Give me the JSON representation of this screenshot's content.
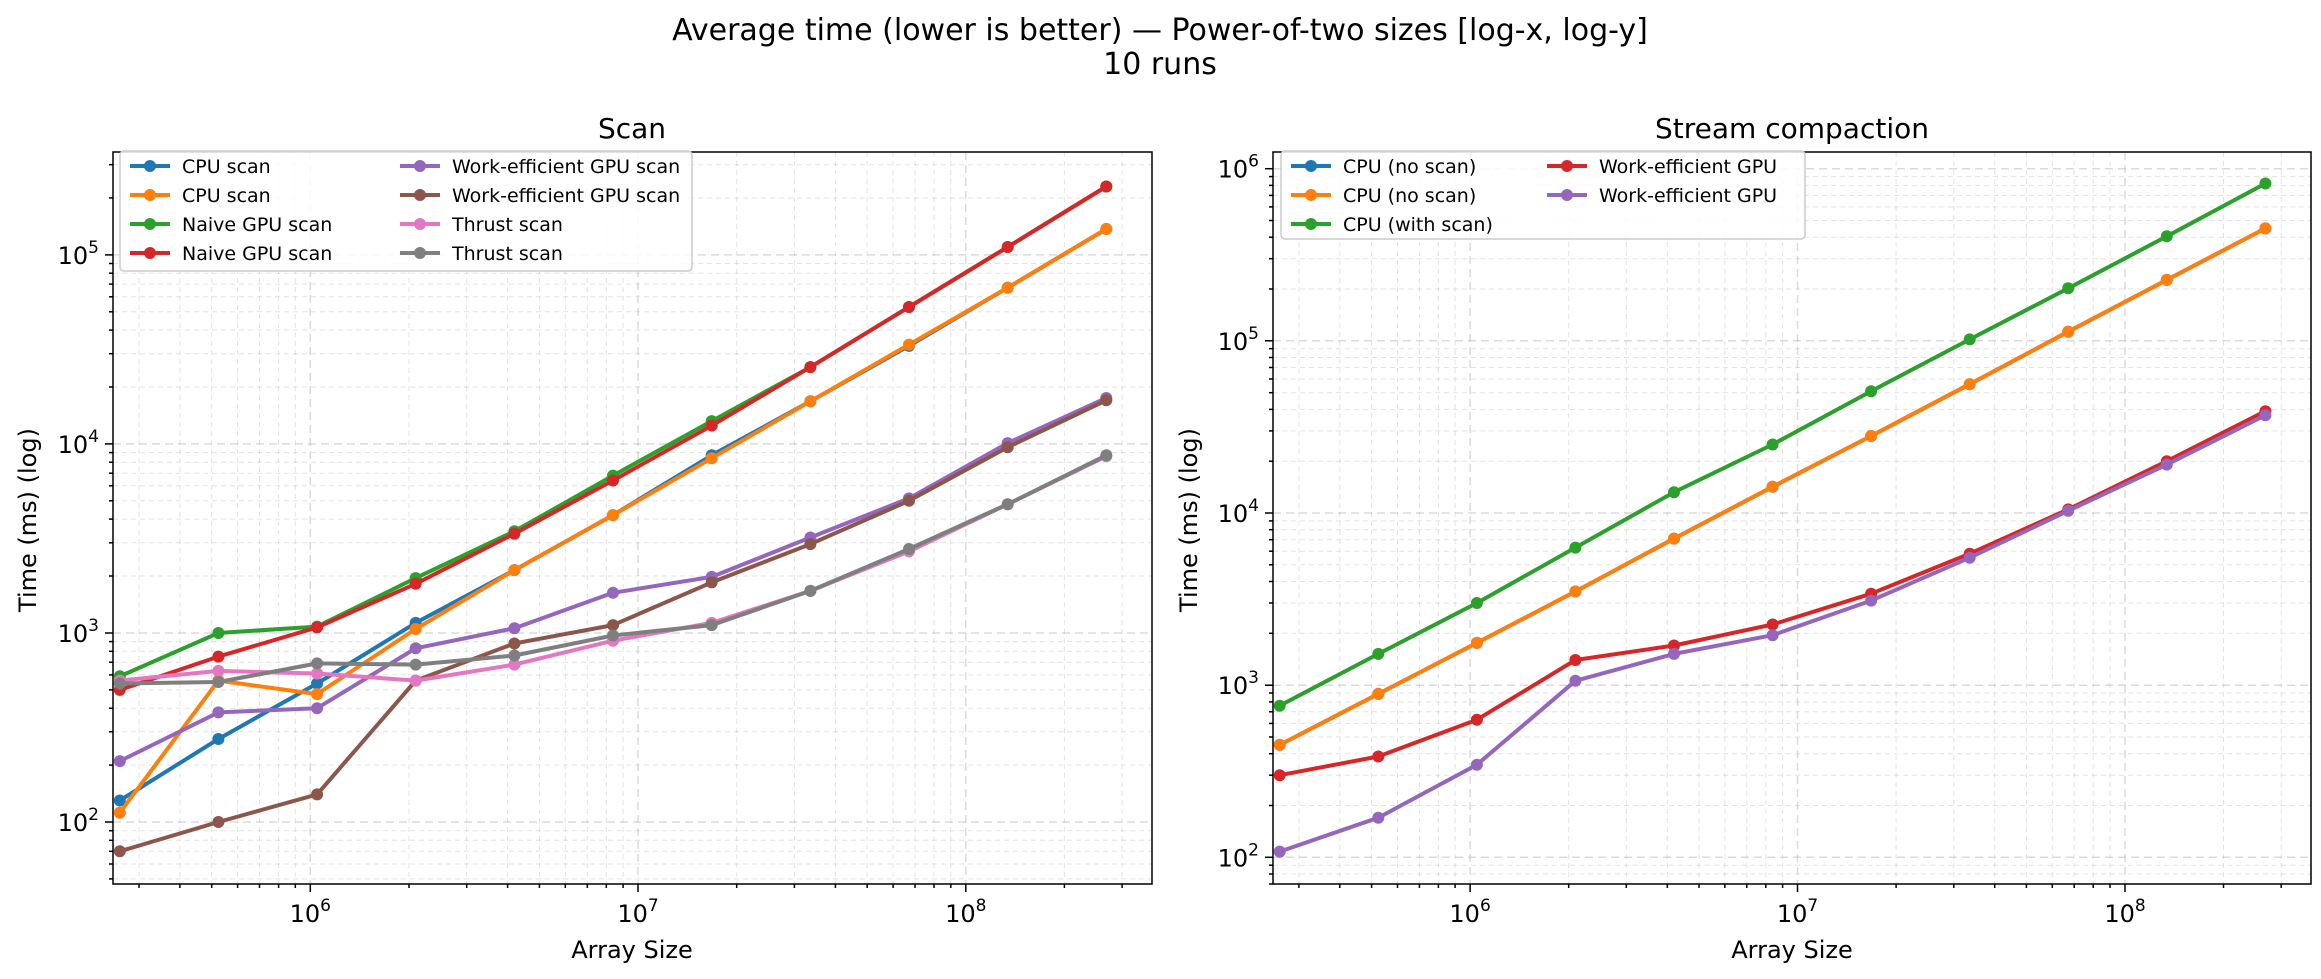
{
  "suptitle": "Average time (lower is better) — Power-of-two sizes [log-x, log-y]",
  "subtitle": "10 runs",
  "chart_data": [
    {
      "type": "line",
      "title": "Scan",
      "xlabel": "Array Size",
      "ylabel": "Time (ms) (log)",
      "xscale": "log",
      "yscale": "log",
      "xlim": [
        250000,
        370000000
      ],
      "ylim": [
        47,
        350000
      ],
      "xticks": [
        {
          "value": 1000000,
          "base": "10",
          "exp": "6"
        },
        {
          "value": 10000000,
          "base": "10",
          "exp": "7"
        },
        {
          "value": 100000000,
          "base": "10",
          "exp": "8"
        }
      ],
      "yticks": [
        {
          "value": 100,
          "base": "10",
          "exp": "2"
        },
        {
          "value": 1000,
          "base": "10",
          "exp": "3"
        },
        {
          "value": 10000,
          "base": "10",
          "exp": "4"
        },
        {
          "value": 100000,
          "base": "10",
          "exp": "5"
        }
      ],
      "grid": true,
      "legend": {
        "placement": "upper-left",
        "columns": 2
      },
      "x": [
        262144,
        524288,
        1048576,
        2097152,
        4194304,
        8388608,
        16777216,
        33554432,
        67108864,
        134217728,
        268435456
      ],
      "series": [
        {
          "name": "CPU scan",
          "color": "#1f77b4",
          "values": [
            130,
            275,
            540,
            1130,
            2150,
            4200,
            8700,
            16800,
            33000,
            67000,
            137000
          ]
        },
        {
          "name": "CPU scan",
          "color": "#ff7f0e",
          "values": [
            112,
            560,
            475,
            1050,
            2150,
            4200,
            8400,
            16800,
            33500,
            67000,
            137000
          ]
        },
        {
          "name": "Naive GPU scan",
          "color": "#2ca02c",
          "values": [
            590,
            1000,
            1080,
            1950,
            3450,
            6800,
            13200,
            25500,
            53000,
            110000,
            230000
          ]
        },
        {
          "name": "Naive GPU scan",
          "color": "#d62728",
          "values": [
            500,
            750,
            1070,
            1820,
            3350,
            6400,
            12500,
            25500,
            53000,
            110000,
            230000
          ]
        },
        {
          "name": "Work-efficient GPU scan",
          "color": "#9467bd",
          "values": [
            210,
            380,
            400,
            830,
            1060,
            1630,
            1980,
            3200,
            5150,
            10100,
            17500
          ]
        },
        {
          "name": "Work-efficient GPU scan",
          "color": "#8c564b",
          "values": [
            70,
            100,
            140,
            560,
            880,
            1100,
            1850,
            2950,
            5000,
            9600,
            17000
          ]
        },
        {
          "name": "Thrust scan",
          "color": "#e377c2",
          "values": [
            560,
            630,
            610,
            560,
            680,
            910,
            1130,
            1670,
            2700,
            4800,
            8600
          ]
        },
        {
          "name": "Thrust scan",
          "color": "#7f7f7f",
          "values": [
            540,
            550,
            690,
            680,
            760,
            970,
            1100,
            1670,
            2780,
            4800,
            8700
          ]
        }
      ]
    },
    {
      "type": "line",
      "title": "Stream compaction",
      "xlabel": "Array Size",
      "ylabel": "Time (ms) (log)",
      "xscale": "log",
      "yscale": "log",
      "xlim": [
        250000,
        370000000
      ],
      "ylim": [
        70,
        1250000
      ],
      "xticks": [
        {
          "value": 1000000,
          "base": "10",
          "exp": "6"
        },
        {
          "value": 10000000,
          "base": "10",
          "exp": "7"
        },
        {
          "value": 100000000,
          "base": "10",
          "exp": "8"
        }
      ],
      "yticks": [
        {
          "value": 100,
          "base": "10",
          "exp": "2"
        },
        {
          "value": 1000,
          "base": "10",
          "exp": "3"
        },
        {
          "value": 10000,
          "base": "10",
          "exp": "4"
        },
        {
          "value": 100000,
          "base": "10",
          "exp": "5"
        },
        {
          "value": 1000000,
          "base": "10",
          "exp": "6"
        }
      ],
      "grid": true,
      "legend": {
        "placement": "upper-left",
        "columns": 2
      },
      "x": [
        262144,
        524288,
        1048576,
        2097152,
        4194304,
        8388608,
        16777216,
        33554432,
        67108864,
        134217728,
        268435456
      ],
      "series": [
        {
          "name": "CPU (no scan)",
          "color": "#1f77b4",
          "values": [
            450,
            890,
            1760,
            3500,
            7100,
            14200,
            28000,
            56000,
            113000,
            226000,
            450000
          ]
        },
        {
          "name": "CPU (no scan)",
          "color": "#ff7f0e",
          "values": [
            450,
            890,
            1760,
            3500,
            7100,
            14200,
            28000,
            56000,
            113000,
            226000,
            450000
          ]
        },
        {
          "name": "CPU (with scan)",
          "color": "#2ca02c",
          "values": [
            760,
            1520,
            3000,
            6300,
            13200,
            25000,
            51000,
            102000,
            202000,
            405000,
            820000
          ]
        },
        {
          "name": "Work-efficient GPU",
          "color": "#d62728",
          "values": [
            300,
            385,
            630,
            1400,
            1700,
            2250,
            3400,
            5800,
            10500,
            20000,
            39000
          ]
        },
        {
          "name": "Work-efficient GPU",
          "color": "#9467bd",
          "values": [
            108,
            170,
            345,
            1060,
            1520,
            1950,
            3100,
            5500,
            10300,
            19100,
            37000
          ]
        }
      ]
    }
  ]
}
